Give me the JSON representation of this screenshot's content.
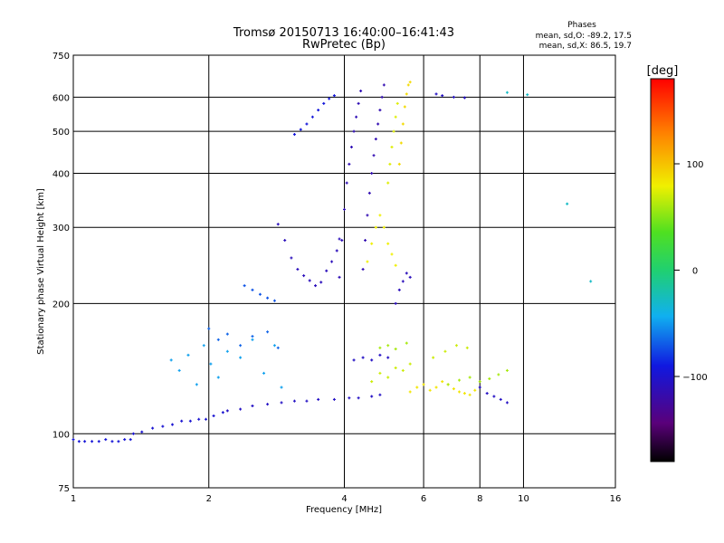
{
  "chart_data": {
    "type": "scatter",
    "title": "Tromsø 20150713 16:40:00–16:41:43",
    "subtitle": "RwPretec (Bp)",
    "stats": {
      "heading": "Phases",
      "line1": "mean, sd,O: -89.2, 17.5",
      "line2": "mean, sd,X:  86.5, 19.7"
    },
    "xlabel": "Frequency [MHz]",
    "ylabel": "Stationary phase Virtual Height [km]",
    "x_scale": "log2",
    "y_scale": "log",
    "xlim": [
      1,
      16
    ],
    "ylim": [
      75,
      750
    ],
    "x_ticks": [
      {
        "v": 1,
        "label": "1"
      },
      {
        "v": 2,
        "label": "2"
      },
      {
        "v": 4,
        "label": "4"
      },
      {
        "v": 6,
        "label": "6"
      },
      {
        "v": 8,
        "label": "8"
      },
      {
        "v": 10,
        "label": "10"
      },
      {
        "v": 16,
        "label": "16"
      }
    ],
    "y_ticks": [
      {
        "v": 75,
        "label": "75"
      },
      {
        "v": 100,
        "label": "100"
      },
      {
        "v": 200,
        "label": "200"
      },
      {
        "v": 300,
        "label": "300"
      },
      {
        "v": 400,
        "label": "400"
      },
      {
        "v": 500,
        "label": "500"
      },
      {
        "v": 600,
        "label": "600"
      },
      {
        "v": 750,
        "label": "750"
      }
    ],
    "grid": true,
    "colorbar": {
      "label": "[deg]",
      "range": [
        -180,
        180
      ],
      "ticks": [
        {
          "v": 100,
          "label": "100"
        },
        {
          "v": 0,
          "label": "0"
        },
        {
          "v": -100,
          "label": "−100"
        }
      ]
    },
    "series": [
      {
        "x": [
          1.0,
          1.03,
          1.06,
          1.1,
          1.14,
          1.18,
          1.22,
          1.26,
          1.3,
          1.34
        ],
        "y": [
          97,
          96,
          96,
          96,
          96,
          97,
          96,
          96,
          97,
          97
        ],
        "phase": -100
      },
      {
        "x": [
          1.36,
          1.42,
          1.5,
          1.58,
          1.66,
          1.74,
          1.82,
          1.9,
          1.97,
          2.05,
          2.15
        ],
        "y": [
          100,
          101,
          103,
          104,
          105,
          107,
          107,
          108,
          108,
          110,
          112
        ],
        "phase": -103
      },
      {
        "x": [
          2.2,
          2.35,
          2.5,
          2.7,
          2.9,
          3.1,
          3.3,
          3.5,
          3.8,
          4.1,
          4.3,
          4.6,
          4.8
        ],
        "y": [
          113,
          114,
          116,
          117,
          118,
          119,
          119,
          120,
          120,
          121,
          121,
          122,
          123
        ],
        "phase": -110
      },
      {
        "x": [
          1.65,
          1.72,
          1.8,
          1.88,
          1.95,
          2.02,
          2.1,
          2.2,
          2.35,
          2.5,
          2.65,
          2.8,
          2.9
        ],
        "y": [
          148,
          140,
          152,
          130,
          160,
          145,
          135,
          155,
          150,
          165,
          138,
          160,
          128
        ],
        "phase": -50
      },
      {
        "x": [
          2.0,
          2.1,
          2.2,
          2.35,
          2.5,
          2.7,
          2.85
        ],
        "y": [
          175,
          165,
          170,
          160,
          168,
          172,
          158
        ],
        "phase": -70
      },
      {
        "x": [
          2.4,
          2.5,
          2.6,
          2.7,
          2.8
        ],
        "y": [
          220,
          215,
          210,
          206,
          203
        ],
        "phase": -75
      },
      {
        "x": [
          2.85,
          2.95,
          3.05,
          3.15,
          3.25,
          3.35,
          3.45,
          3.55,
          3.65,
          3.75,
          3.85,
          3.9
        ],
        "y": [
          305,
          280,
          255,
          240,
          232,
          226,
          220,
          224,
          238,
          250,
          265,
          282
        ],
        "phase": -115
      },
      {
        "x": [
          3.1,
          3.2,
          3.3,
          3.4,
          3.5,
          3.6,
          3.7,
          3.8
        ],
        "y": [
          492,
          505,
          520,
          540,
          560,
          580,
          595,
          605
        ],
        "phase": -98
      },
      {
        "x": [
          3.9,
          3.95,
          4.0,
          4.05,
          4.1,
          4.15,
          4.2,
          4.25,
          4.3,
          4.35
        ],
        "y": [
          230,
          280,
          330,
          380,
          420,
          460,
          500,
          540,
          580,
          620
        ],
        "phase": -118
      },
      {
        "x": [
          4.4,
          4.45,
          4.5,
          4.55,
          4.6,
          4.65,
          4.7,
          4.75,
          4.8,
          4.85,
          4.9
        ],
        "y": [
          240,
          280,
          320,
          360,
          400,
          440,
          480,
          520,
          560,
          600,
          640
        ],
        "phase": -120
      },
      {
        "x": [
          4.5,
          4.6,
          4.7,
          4.8,
          4.9,
          5.0,
          5.1,
          5.2
        ],
        "y": [
          250,
          275,
          300,
          320,
          300,
          275,
          260,
          245
        ],
        "phase": 80
      },
      {
        "x": [
          5.0,
          5.05,
          5.1,
          5.15,
          5.2,
          5.25
        ],
        "y": [
          380,
          420,
          460,
          500,
          540,
          580
        ],
        "phase": 75
      },
      {
        "x": [
          5.3,
          5.35,
          5.4,
          5.45,
          5.5,
          5.55,
          5.6
        ],
        "y": [
          420,
          470,
          520,
          570,
          610,
          640,
          650
        ],
        "phase": 90
      },
      {
        "x": [
          5.2,
          5.3,
          5.4,
          5.5,
          5.6
        ],
        "y": [
          200,
          215,
          225,
          235,
          230
        ],
        "phase": -115
      },
      {
        "x": [
          4.6,
          4.8,
          5.0,
          5.2,
          5.4,
          5.6
        ],
        "y": [
          132,
          138,
          135,
          142,
          140,
          145
        ],
        "phase": 70
      },
      {
        "x": [
          4.8,
          5.0,
          5.2,
          5.5
        ],
        "y": [
          158,
          160,
          157,
          162
        ],
        "phase": 60
      },
      {
        "x": [
          5.6,
          5.8,
          6.0,
          6.2,
          6.4,
          6.6,
          6.8,
          7.0,
          7.2,
          7.4,
          7.6,
          7.8
        ],
        "y": [
          125,
          128,
          130,
          126,
          128,
          132,
          130,
          127,
          125,
          124,
          123,
          126
        ],
        "phase": 85
      },
      {
        "x": [
          6.8,
          7.2,
          7.6,
          8.0,
          8.4,
          8.8,
          9.2
        ],
        "y": [
          130,
          133,
          135,
          132,
          134,
          137,
          140
        ],
        "phase": 60
      },
      {
        "x": [
          8.0,
          8.3,
          8.6,
          8.9,
          9.2
        ],
        "y": [
          128,
          124,
          122,
          120,
          118
        ],
        "phase": -110
      },
      {
        "x": [
          4.2,
          4.4,
          4.6,
          4.8,
          5.0
        ],
        "y": [
          148,
          150,
          148,
          152,
          150
        ],
        "phase": -110
      },
      {
        "x": [
          6.3,
          6.7,
          7.1,
          7.5
        ],
        "y": [
          150,
          155,
          160,
          158
        ],
        "phase": 70
      },
      {
        "x": [
          6.4,
          6.6,
          7.0,
          7.4
        ],
        "y": [
          610,
          605,
          600,
          598
        ],
        "phase": -110
      },
      {
        "x": [
          9.2,
          10.2,
          12.5,
          14.1
        ],
        "y": [
          615,
          608,
          340,
          225
        ],
        "phase": -30
      }
    ]
  }
}
